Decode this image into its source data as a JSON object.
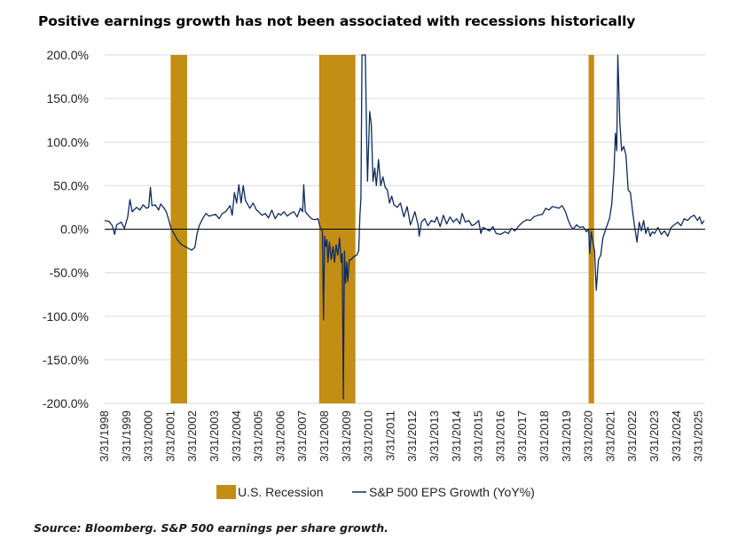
{
  "title": "Positive earnings growth has not been associated with recessions historically",
  "source": "Source: Bloomberg. S&P 500 earnings per share growth.",
  "colors": {
    "recession": "#c28e14",
    "line": "#0f2a5e",
    "grid": "#d9d9d9",
    "zero": "#000000"
  },
  "chart_data": {
    "type": "line",
    "title": "Positive earnings growth has not been associated with recessions historically",
    "xlabel": "",
    "ylabel": "",
    "ylim": [
      -200,
      200
    ],
    "yticks": [
      200,
      150,
      100,
      50,
      0,
      -50,
      -100,
      -150,
      -200
    ],
    "ytick_labels": [
      "200.0%",
      "150.0%",
      "100.0%",
      "50.0%",
      "0.0%",
      "-50.0%",
      "-100.0%",
      "-150.0%",
      "-200.0%"
    ],
    "xlim": [
      1998.0,
      2025.3
    ],
    "xtick_years": [
      1998,
      1999,
      2000,
      2001,
      2002,
      2003,
      2004,
      2005,
      2006,
      2007,
      2008,
      2009,
      2010,
      2011,
      2012,
      2013,
      2014,
      2015,
      2016,
      2017,
      2018,
      2019,
      2020,
      2021,
      2022,
      2023,
      2024,
      2025
    ],
    "xtick_labels": [
      "3/31/1998",
      "3/31/1999",
      "3/31/2000",
      "3/31/2001",
      "3/31/2002",
      "3/31/2003",
      "3/31/2004",
      "3/31/2005",
      "3/31/2006",
      "3/31/2007",
      "3/31/2008",
      "3/31/2009",
      "3/31/2010",
      "3/31/2011",
      "3/31/2012",
      "3/31/2013",
      "3/31/2014",
      "3/31/2015",
      "3/31/2016",
      "3/31/2017",
      "3/31/2018",
      "3/31/2019",
      "3/31/2020",
      "3/31/2021",
      "3/31/2022",
      "3/31/2023",
      "3/31/2024",
      "3/31/2025"
    ],
    "grid": true,
    "legend_position": "bottom",
    "legend": [
      "U.S. Recession",
      "S&P 500 EPS Growth (YoY%)"
    ],
    "recessions": [
      {
        "name": "U.S. Recession",
        "start": 2001.0,
        "end": 2001.75
      },
      {
        "name": "U.S. Recession",
        "start": 2007.75,
        "end": 2009.4
      },
      {
        "name": "U.S. Recession",
        "start": 2020.0,
        "end": 2020.25
      }
    ],
    "series": [
      {
        "name": "S&P 500 EPS Growth (YoY%)",
        "points": [
          [
            1998.0,
            10
          ],
          [
            1998.2,
            9
          ],
          [
            1998.35,
            4
          ],
          [
            1998.45,
            -6
          ],
          [
            1998.55,
            5
          ],
          [
            1998.75,
            8
          ],
          [
            1998.9,
            1
          ],
          [
            1999.05,
            14
          ],
          [
            1999.15,
            34
          ],
          [
            1999.25,
            20
          ],
          [
            1999.45,
            25
          ],
          [
            1999.6,
            22
          ],
          [
            1999.75,
            28
          ],
          [
            1999.9,
            24
          ],
          [
            2000.0,
            25
          ],
          [
            2000.08,
            48
          ],
          [
            2000.15,
            27
          ],
          [
            2000.3,
            28
          ],
          [
            2000.45,
            22
          ],
          [
            2000.55,
            29
          ],
          [
            2000.7,
            24
          ],
          [
            2000.8,
            20
          ],
          [
            2000.9,
            12
          ],
          [
            2001.0,
            2
          ],
          [
            2001.15,
            -5
          ],
          [
            2001.3,
            -12
          ],
          [
            2001.5,
            -18
          ],
          [
            2001.65,
            -20
          ],
          [
            2001.8,
            -22
          ],
          [
            2001.95,
            -24
          ],
          [
            2002.1,
            -21
          ],
          [
            2002.2,
            -5
          ],
          [
            2002.3,
            4
          ],
          [
            2002.45,
            12
          ],
          [
            2002.6,
            18
          ],
          [
            2002.75,
            15
          ],
          [
            2002.9,
            16
          ],
          [
            2003.05,
            17
          ],
          [
            2003.2,
            12
          ],
          [
            2003.35,
            18
          ],
          [
            2003.5,
            20
          ],
          [
            2003.7,
            27
          ],
          [
            2003.8,
            16
          ],
          [
            2003.9,
            42
          ],
          [
            2004.0,
            30
          ],
          [
            2004.1,
            51
          ],
          [
            2004.2,
            30
          ],
          [
            2004.3,
            50
          ],
          [
            2004.4,
            33
          ],
          [
            2004.6,
            24
          ],
          [
            2004.75,
            30
          ],
          [
            2004.9,
            22
          ],
          [
            2005.0,
            20
          ],
          [
            2005.15,
            16
          ],
          [
            2005.3,
            18
          ],
          [
            2005.45,
            13
          ],
          [
            2005.6,
            22
          ],
          [
            2005.75,
            12
          ],
          [
            2005.9,
            18
          ],
          [
            2006.0,
            16
          ],
          [
            2006.15,
            20
          ],
          [
            2006.3,
            15
          ],
          [
            2006.45,
            18
          ],
          [
            2006.6,
            20
          ],
          [
            2006.75,
            14
          ],
          [
            2006.9,
            24
          ],
          [
            2007.0,
            20
          ],
          [
            2007.05,
            51
          ],
          [
            2007.12,
            20
          ],
          [
            2007.25,
            16
          ],
          [
            2007.4,
            12
          ],
          [
            2007.55,
            11
          ],
          [
            2007.7,
            12
          ],
          [
            2007.8,
            2
          ],
          [
            2007.9,
            -3
          ],
          [
            2007.95,
            -104
          ],
          [
            2008.0,
            -8
          ],
          [
            2008.05,
            -20
          ],
          [
            2008.1,
            -12
          ],
          [
            2008.15,
            -38
          ],
          [
            2008.22,
            -15
          ],
          [
            2008.3,
            -35
          ],
          [
            2008.38,
            -20
          ],
          [
            2008.45,
            -38
          ],
          [
            2008.52,
            -18
          ],
          [
            2008.6,
            -30
          ],
          [
            2008.68,
            -10
          ],
          [
            2008.75,
            -38
          ],
          [
            2008.8,
            -28
          ],
          [
            2008.85,
            -195
          ],
          [
            2008.9,
            -25
          ],
          [
            2008.95,
            -62
          ],
          [
            2009.0,
            -38
          ],
          [
            2009.05,
            -60
          ],
          [
            2009.12,
            -35
          ],
          [
            2009.2,
            -35
          ],
          [
            2009.3,
            -32
          ],
          [
            2009.45,
            -30
          ],
          [
            2009.55,
            -25
          ],
          [
            2009.6,
            15
          ],
          [
            2009.65,
            35
          ],
          [
            2009.7,
            205
          ],
          [
            2009.78,
            200
          ],
          [
            2009.85,
            205
          ],
          [
            2009.9,
            120
          ],
          [
            2009.95,
            55
          ],
          [
            2010.05,
            135
          ],
          [
            2010.12,
            120
          ],
          [
            2010.2,
            55
          ],
          [
            2010.28,
            70
          ],
          [
            2010.35,
            50
          ],
          [
            2010.45,
            80
          ],
          [
            2010.55,
            50
          ],
          [
            2010.65,
            60
          ],
          [
            2010.75,
            48
          ],
          [
            2010.85,
            45
          ],
          [
            2010.95,
            30
          ],
          [
            2011.05,
            38
          ],
          [
            2011.15,
            28
          ],
          [
            2011.3,
            25
          ],
          [
            2011.45,
            30
          ],
          [
            2011.6,
            14
          ],
          [
            2011.75,
            26
          ],
          [
            2011.9,
            5
          ],
          [
            2012.0,
            12
          ],
          [
            2012.1,
            20
          ],
          [
            2012.25,
            5
          ],
          [
            2012.3,
            -8
          ],
          [
            2012.4,
            8
          ],
          [
            2012.55,
            12
          ],
          [
            2012.7,
            4
          ],
          [
            2012.85,
            10
          ],
          [
            2013.0,
            8
          ],
          [
            2013.1,
            14
          ],
          [
            2013.25,
            3
          ],
          [
            2013.4,
            16
          ],
          [
            2013.55,
            6
          ],
          [
            2013.7,
            14
          ],
          [
            2013.85,
            8
          ],
          [
            2014.0,
            12
          ],
          [
            2014.15,
            6
          ],
          [
            2014.25,
            18
          ],
          [
            2014.4,
            8
          ],
          [
            2014.55,
            10
          ],
          [
            2014.7,
            4
          ],
          [
            2014.85,
            6
          ],
          [
            2015.0,
            10
          ],
          [
            2015.1,
            -5
          ],
          [
            2015.2,
            2
          ],
          [
            2015.35,
            0
          ],
          [
            2015.5,
            -2
          ],
          [
            2015.65,
            3
          ],
          [
            2015.8,
            -5
          ],
          [
            2016.0,
            -6
          ],
          [
            2016.2,
            -3
          ],
          [
            2016.35,
            -5
          ],
          [
            2016.5,
            1
          ],
          [
            2016.65,
            -2
          ],
          [
            2016.8,
            3
          ],
          [
            2017.0,
            8
          ],
          [
            2017.2,
            11
          ],
          [
            2017.35,
            10
          ],
          [
            2017.5,
            14
          ],
          [
            2017.7,
            16
          ],
          [
            2017.9,
            17
          ],
          [
            2018.05,
            24
          ],
          [
            2018.2,
            22
          ],
          [
            2018.35,
            26
          ],
          [
            2018.5,
            25
          ],
          [
            2018.65,
            24
          ],
          [
            2018.8,
            27
          ],
          [
            2018.95,
            20
          ],
          [
            2019.05,
            12
          ],
          [
            2019.2,
            3
          ],
          [
            2019.3,
            0
          ],
          [
            2019.45,
            5
          ],
          [
            2019.6,
            2
          ],
          [
            2019.75,
            3
          ],
          [
            2019.9,
            -3
          ],
          [
            2020.0,
            0
          ],
          [
            2020.05,
            -28
          ],
          [
            2020.12,
            -3
          ],
          [
            2020.2,
            -15
          ],
          [
            2020.27,
            -25
          ],
          [
            2020.35,
            -70
          ],
          [
            2020.45,
            -35
          ],
          [
            2020.55,
            -30
          ],
          [
            2020.65,
            -10
          ],
          [
            2020.75,
            -2
          ],
          [
            2020.85,
            5
          ],
          [
            2020.95,
            12
          ],
          [
            2021.05,
            28
          ],
          [
            2021.15,
            65
          ],
          [
            2021.22,
            110
          ],
          [
            2021.28,
            90
          ],
          [
            2021.33,
            205
          ],
          [
            2021.42,
            122
          ],
          [
            2021.5,
            90
          ],
          [
            2021.6,
            95
          ],
          [
            2021.7,
            85
          ],
          [
            2021.8,
            45
          ],
          [
            2021.9,
            42
          ],
          [
            2022.0,
            20
          ],
          [
            2022.1,
            2
          ],
          [
            2022.2,
            -15
          ],
          [
            2022.3,
            8
          ],
          [
            2022.4,
            -2
          ],
          [
            2022.5,
            10
          ],
          [
            2022.6,
            -5
          ],
          [
            2022.7,
            2
          ],
          [
            2022.8,
            -8
          ],
          [
            2022.9,
            -3
          ],
          [
            2023.0,
            -5
          ],
          [
            2023.15,
            2
          ],
          [
            2023.3,
            -6
          ],
          [
            2023.45,
            -2
          ],
          [
            2023.6,
            -8
          ],
          [
            2023.75,
            2
          ],
          [
            2023.9,
            5
          ],
          [
            2024.05,
            8
          ],
          [
            2024.2,
            4
          ],
          [
            2024.35,
            12
          ],
          [
            2024.5,
            10
          ],
          [
            2024.65,
            14
          ],
          [
            2024.8,
            16
          ],
          [
            2024.95,
            10
          ],
          [
            2025.05,
            14
          ],
          [
            2025.15,
            6
          ],
          [
            2025.25,
            10
          ]
        ]
      }
    ]
  }
}
